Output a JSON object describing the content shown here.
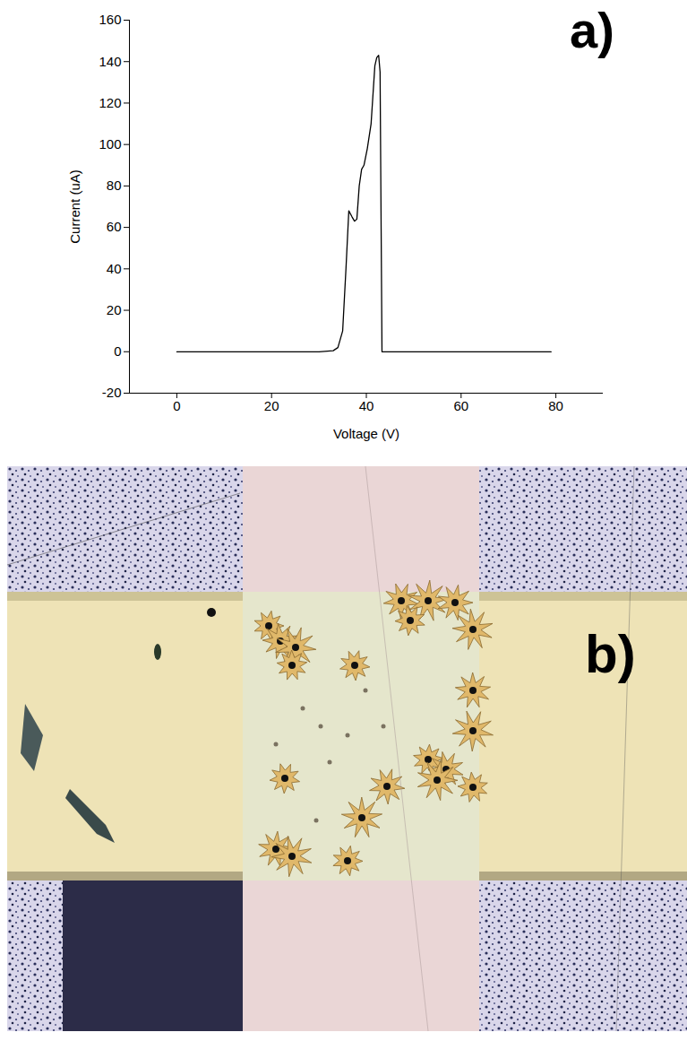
{
  "chart_data": {
    "type": "line",
    "panel_label": "a)",
    "x": [
      0,
      30,
      33,
      34,
      35,
      35.7,
      36.3,
      37,
      37.5,
      38,
      38.5,
      39,
      39.5,
      40.2,
      41,
      41.8,
      42.2,
      42.6,
      42.9,
      43.3,
      60,
      79
    ],
    "values": [
      0,
      0,
      0.5,
      2,
      10,
      40,
      68,
      65,
      63,
      64,
      80,
      88,
      90,
      98,
      110,
      138,
      142,
      143,
      135,
      0,
      0,
      0
    ],
    "color": "#000000",
    "x_label": "Voltage (V)",
    "y_label": "Current (uA)",
    "xlim": [
      -10,
      90
    ],
    "xticks": [
      0,
      20,
      40,
      60,
      80
    ],
    "ylim": [
      -20,
      160
    ],
    "yticks": [
      -20,
      0,
      20,
      40,
      60,
      80,
      100,
      120,
      140,
      160
    ],
    "grid": false
  },
  "photo": {
    "panel_label": "b)"
  }
}
